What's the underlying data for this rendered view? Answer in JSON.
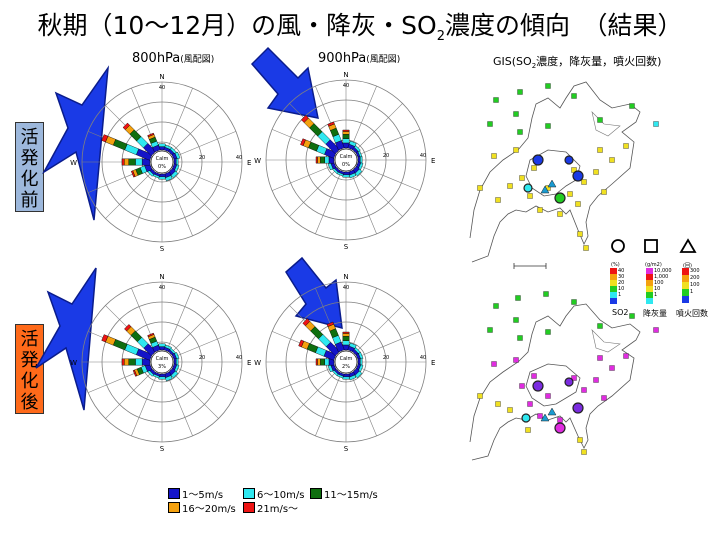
{
  "title": {
    "main": "秋期（10〜12月）の風・降灰・SO",
    "sub": "2",
    "tail": "濃度の傾向　（結果）"
  },
  "captions": {
    "p800": "800hPa",
    "p800_sub": "(風配図)",
    "p900": "900hPa",
    "p900_sub": "(風配図)",
    "gis": "GIS(SO",
    "gis_sub": "2",
    "gis_tail": "濃度，降灰量，噴火回数)"
  },
  "side_labels": {
    "before": [
      "活",
      "発",
      "化",
      "前"
    ],
    "after": [
      "活",
      "発",
      "化",
      "後"
    ]
  },
  "rose_labels": {
    "n": "N",
    "e": "E",
    "s": "S",
    "w": "W",
    "r40": "40",
    "r20": "20",
    "calm": "Calm",
    "calm_800_before": "0%",
    "calm_900_before": "0%",
    "calm_800_after": "3%",
    "calm_900_after": "2%"
  },
  "speed_legend": [
    {
      "label": "1〜5m/s",
      "color": "#1414c8"
    },
    {
      "label": "6〜10m/s",
      "color": "#2fe8f0"
    },
    {
      "label": "11〜15m/s",
      "color": "#0f6e0f"
    },
    {
      "label": "16〜20m/s",
      "color": "#f4a10f"
    },
    {
      "label": "21m/s〜",
      "color": "#ee1414"
    }
  ],
  "gis_legend": {
    "so2_unit": "(%)",
    "so2_values": [
      "40",
      "30",
      "20",
      "10",
      "1"
    ],
    "ash_unit": "(g/m2)",
    "ash_values": [
      "10,000",
      "1,000",
      "100",
      "10",
      "1"
    ],
    "erupt_unit": "(回)",
    "erupt_values": [
      "300",
      "200",
      "100",
      "1"
    ],
    "so2_name": "SO2",
    "ash_name": "降灰量",
    "erupt_name": "噴火回数"
  },
  "chart_data": [
    {
      "type": "wind-rose",
      "level": "800hPa",
      "period": "活発化前",
      "calm": "0%",
      "dominant_direction": "WNW",
      "rmax": 40,
      "directions": [
        "N",
        "NNE",
        "NE",
        "ENE",
        "E",
        "ESE",
        "SE",
        "SSE",
        "S",
        "SSW",
        "SW",
        "WSW",
        "W",
        "WNW",
        "NW",
        "NNW"
      ],
      "frequency": [
        6,
        5,
        5,
        6,
        4,
        5,
        7,
        7,
        5,
        4,
        5,
        10,
        14,
        26,
        20,
        9
      ]
    },
    {
      "type": "wind-rose",
      "level": "900hPa",
      "period": "活発化前",
      "calm": "0%",
      "dominant_direction": "NW",
      "rmax": 40,
      "directions": [
        "N",
        "NNE",
        "NE",
        "ENE",
        "E",
        "ESE",
        "SE",
        "SSE",
        "S",
        "SSW",
        "SW",
        "WSW",
        "W",
        "WNW",
        "NW",
        "NNW"
      ],
      "frequency": [
        9,
        7,
        5,
        4,
        4,
        5,
        7,
        6,
        5,
        4,
        4,
        6,
        9,
        18,
        24,
        14
      ]
    },
    {
      "type": "wind-rose",
      "level": "800hPa",
      "period": "活発化後",
      "calm": "3%",
      "dominant_direction": "WNW",
      "rmax": 40,
      "directions": [
        "N",
        "NNE",
        "NE",
        "ENE",
        "E",
        "ESE",
        "SE",
        "SSE",
        "S",
        "SSW",
        "SW",
        "WSW",
        "W",
        "WNW",
        "NW",
        "NNW"
      ],
      "frequency": [
        6,
        5,
        4,
        5,
        4,
        5,
        7,
        7,
        5,
        4,
        5,
        9,
        14,
        26,
        19,
        9
      ]
    },
    {
      "type": "wind-rose",
      "level": "900hPa",
      "period": "活発化後",
      "calm": "2%",
      "dominant_direction": "NW",
      "rmax": 40,
      "directions": [
        "N",
        "NNE",
        "NE",
        "ENE",
        "E",
        "ESE",
        "SE",
        "SSE",
        "S",
        "SSW",
        "SW",
        "WSW",
        "W",
        "WNW",
        "NW",
        "NNW"
      ],
      "frequency": [
        9,
        7,
        5,
        5,
        4,
        5,
        7,
        6,
        5,
        4,
        4,
        6,
        9,
        19,
        23,
        15
      ]
    }
  ],
  "colors": {
    "arrow": "#1a3ae6",
    "arrow_edge": "#0a1c8c",
    "grid": "#808080",
    "side_before": "#9db8dc",
    "side_after": "#ff6a1a"
  }
}
